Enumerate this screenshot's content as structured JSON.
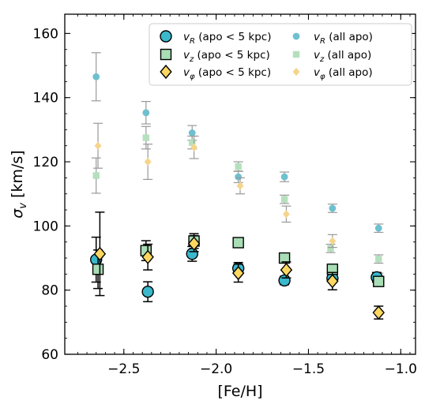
{
  "chart_data": {
    "type": "scatter",
    "xlabel": "[Fe/H]",
    "ylabel": "σ_v [km/s]",
    "xlim": [
      -2.82,
      -0.92
    ],
    "ylim": [
      60,
      166
    ],
    "xticks": [
      -2.5,
      -2.0,
      -1.5,
      -1.0
    ],
    "xtick_labels": [
      "−2.5",
      "−2.0",
      "−1.5",
      "−1.0"
    ],
    "yticks": [
      60,
      80,
      100,
      120,
      140,
      160
    ],
    "ytick_labels": [
      "60",
      "80",
      "100",
      "120",
      "140",
      "160"
    ],
    "grid": false,
    "legend_position": "upper-right",
    "legend_columns": 2,
    "series": [
      {
        "name": "v_R (apo < 5 kpc)",
        "label_var": "v",
        "label_sub": "R",
        "label_rest": " (apo < 5 kpc)",
        "marker": "circle",
        "size": "large",
        "color": "#3bb8cc",
        "edge": "#000000",
        "err_color": "#000000",
        "x": [
          -2.65,
          -2.37,
          -2.13,
          -1.88,
          -1.63,
          -1.37,
          -1.13
        ],
        "y": [
          89.5,
          79.5,
          91.3,
          86.8,
          83.0,
          83.7,
          84.0
        ],
        "err": [
          7.0,
          3.1,
          2.3,
          1.8,
          1.3,
          1.3,
          1.5
        ]
      },
      {
        "name": "v_z (apo < 5 kpc)",
        "label_var": "v",
        "label_sub": "z",
        "label_rest": " (apo < 5 kpc)",
        "marker": "square",
        "size": "large",
        "color": "#a8ddb5",
        "edge": "#000000",
        "err_color": "#000000",
        "x": [
          -2.64,
          -2.38,
          -2.12,
          -1.88,
          -1.63,
          -1.37,
          -1.12
        ],
        "y": [
          86.5,
          92.3,
          95.3,
          94.8,
          90.0,
          86.5,
          82.7
        ],
        "err": [
          6.0,
          3.1,
          2.3,
          1.5,
          1.0,
          1.0,
          1.5
        ]
      },
      {
        "name": "v_φ (apo < 5 kpc)",
        "label_var": "v",
        "label_sub": "φ",
        "label_rest": " (apo < 5 kpc)",
        "marker": "diamond",
        "size": "large",
        "color": "#fdd760",
        "edge": "#000000",
        "err_color": "#000000",
        "x": [
          -2.63,
          -2.37,
          -2.12,
          -1.88,
          -1.62,
          -1.37,
          -1.12
        ],
        "y": [
          91.3,
          90.3,
          94.5,
          85.3,
          86.3,
          82.8,
          73.0
        ],
        "err": [
          13.0,
          4.0,
          2.5,
          2.8,
          2.5,
          2.7,
          2.0
        ]
      },
      {
        "name": "v_R (all apo)",
        "label_var": "v",
        "label_sub": "R",
        "label_rest": " (all apo)",
        "marker": "circle",
        "size": "small",
        "color": "#6fc0cf",
        "edge": "#6fc0cf",
        "err_color": "#999999",
        "x": [
          -2.65,
          -2.38,
          -2.13,
          -1.88,
          -1.63,
          -1.37,
          -1.12
        ],
        "y": [
          146.5,
          135.3,
          129.0,
          115.3,
          115.3,
          105.5,
          99.3
        ],
        "err": [
          7.5,
          3.5,
          2.3,
          1.8,
          1.5,
          1.3,
          1.3
        ]
      },
      {
        "name": "v_z (all apo)",
        "label_var": "v",
        "label_sub": "z",
        "label_rest": " (all apo)",
        "marker": "square",
        "size": "small",
        "color": "#b5e0bd",
        "edge": "#b5e0bd",
        "err_color": "#999999",
        "x": [
          -2.65,
          -2.38,
          -2.13,
          -1.88,
          -1.63,
          -1.38,
          -1.12
        ],
        "y": [
          115.7,
          127.5,
          126.0,
          118.5,
          108.3,
          93.0,
          89.7
        ],
        "err": [
          5.5,
          3.5,
          2.0,
          1.5,
          1.3,
          1.3,
          1.3
        ]
      },
      {
        "name": "v_φ (all apo)",
        "label_var": "v",
        "label_sub": "φ",
        "label_rest": " (all apo)",
        "marker": "diamond",
        "size": "small",
        "color": "#f5d58c",
        "edge": "#f5d58c",
        "err_color": "#999999",
        "x": [
          -2.64,
          -2.37,
          -2.12,
          -1.87,
          -1.62,
          -1.37,
          -1.12
        ],
        "y": [
          125.0,
          120.0,
          124.5,
          112.5,
          103.7,
          95.3,
          83.3
        ],
        "err": [
          7.0,
          5.5,
          3.5,
          2.5,
          2.5,
          2.0,
          2.0
        ]
      }
    ]
  }
}
